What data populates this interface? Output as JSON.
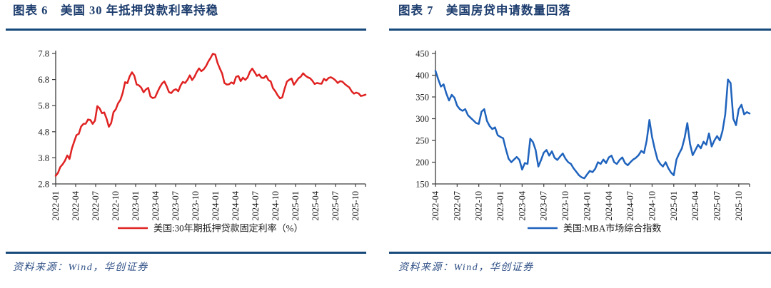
{
  "figures": [
    {
      "title": "图表 6　美国 30 年抵押贷款利率持稳",
      "source": "资料来源：Wind，华创证券"
    },
    {
      "title": "图表 7　美国房贷申请数量回落",
      "source": "资料来源：Wind，华创证券"
    }
  ],
  "chart_data": [
    {
      "type": "line",
      "title": "美国 30 年抵押贷款利率持稳",
      "legend": "美国:30年期抵押贷款固定利率（%）",
      "line_color": "#e02222",
      "axis_color": "#3d3d3d",
      "ylim": [
        2.8,
        7.8
      ],
      "yticks": [
        2.8,
        3.8,
        4.8,
        5.8,
        6.8,
        7.8
      ],
      "xticks": [
        "2022-01",
        "2022-04",
        "2022-07",
        "2022-10",
        "2023-01",
        "2023-04",
        "2023-07",
        "2023-10",
        "2024-01",
        "2024-04",
        "2024-07",
        "2024-10",
        "2025-01",
        "2025-04",
        "2025-07",
        "2025-10"
      ],
      "tick_interval_months": 3,
      "x_span_months": 46.5,
      "values": [
        3.11,
        3.22,
        3.45,
        3.55,
        3.69,
        3.89,
        3.76,
        4.16,
        4.42,
        4.67,
        4.72,
        5.0,
        5.1,
        5.11,
        5.27,
        5.25,
        5.1,
        5.23,
        5.78,
        5.7,
        5.51,
        5.54,
        5.3,
        4.99,
        5.13,
        5.55,
        5.66,
        5.89,
        6.02,
        6.29,
        6.7,
        6.66,
        6.92,
        7.08,
        6.95,
        6.61,
        6.58,
        6.49,
        6.31,
        6.42,
        6.48,
        6.15,
        6.09,
        6.12,
        6.32,
        6.5,
        6.65,
        6.73,
        6.54,
        6.32,
        6.28,
        6.39,
        6.43,
        6.35,
        6.57,
        6.71,
        6.67,
        6.79,
        6.96,
        6.78,
        6.9,
        7.09,
        7.23,
        7.12,
        7.19,
        7.31,
        7.49,
        7.63,
        7.79,
        7.76,
        7.44,
        7.22,
        7.03,
        6.67,
        6.61,
        6.62,
        6.69,
        6.64,
        6.9,
        6.94,
        6.74,
        6.87,
        6.79,
        6.88,
        7.1,
        7.22,
        7.09,
        6.94,
        6.99,
        6.87,
        6.86,
        6.95,
        6.78,
        6.73,
        6.47,
        6.35,
        6.2,
        6.08,
        6.12,
        6.44,
        6.72,
        6.79,
        6.84,
        6.6,
        6.72,
        6.85,
        6.91,
        7.04,
        6.95,
        6.89,
        6.85,
        6.76,
        6.63,
        6.67,
        6.65,
        6.64,
        6.83,
        6.76,
        6.86,
        6.89,
        6.84,
        6.77,
        6.67,
        6.74,
        6.72,
        6.63,
        6.56,
        6.5,
        6.35,
        6.26,
        6.3,
        6.27,
        6.17,
        6.19,
        6.22
      ]
    },
    {
      "type": "line",
      "title": "美国房贷申请数量回落",
      "legend": "美国:MBA市场综合指数",
      "line_color": "#1f63bd",
      "axis_color": "#3d3d3d",
      "ylim": [
        150,
        450
      ],
      "yticks": [
        150,
        200,
        250,
        300,
        350,
        400,
        450
      ],
      "xticks": [
        "2022-04",
        "2022-07",
        "2022-10",
        "2023-01",
        "2023-04",
        "2023-07",
        "2023-10",
        "2024-01",
        "2024-04",
        "2024-07",
        "2024-10",
        "2025-01",
        "2025-04",
        "2025-07",
        "2025-10"
      ],
      "tick_interval_months": 3,
      "x_span_months": 43.5,
      "values": [
        410,
        391,
        374,
        379,
        358,
        342,
        355,
        348,
        330,
        322,
        318,
        322,
        308,
        302,
        296,
        290,
        288,
        316,
        322,
        295,
        283,
        276,
        280,
        262,
        258,
        255,
        230,
        208,
        200,
        206,
        212,
        205,
        183,
        198,
        196,
        254,
        246,
        228,
        190,
        205,
        222,
        228,
        215,
        225,
        210,
        205,
        213,
        220,
        208,
        200,
        196,
        186,
        178,
        170,
        165,
        163,
        172,
        180,
        177,
        185,
        200,
        196,
        206,
        198,
        211,
        215,
        200,
        196,
        205,
        211,
        198,
        193,
        200,
        206,
        210,
        216,
        226,
        221,
        250,
        297,
        258,
        230,
        206,
        196,
        190,
        200,
        186,
        176,
        170,
        206,
        220,
        232,
        256,
        290,
        242,
        216,
        228,
        240,
        232,
        247,
        240,
        266,
        236,
        250,
        260,
        250,
        272,
        310,
        390,
        382,
        300,
        285,
        322,
        332,
        310,
        315,
        312
      ]
    }
  ]
}
